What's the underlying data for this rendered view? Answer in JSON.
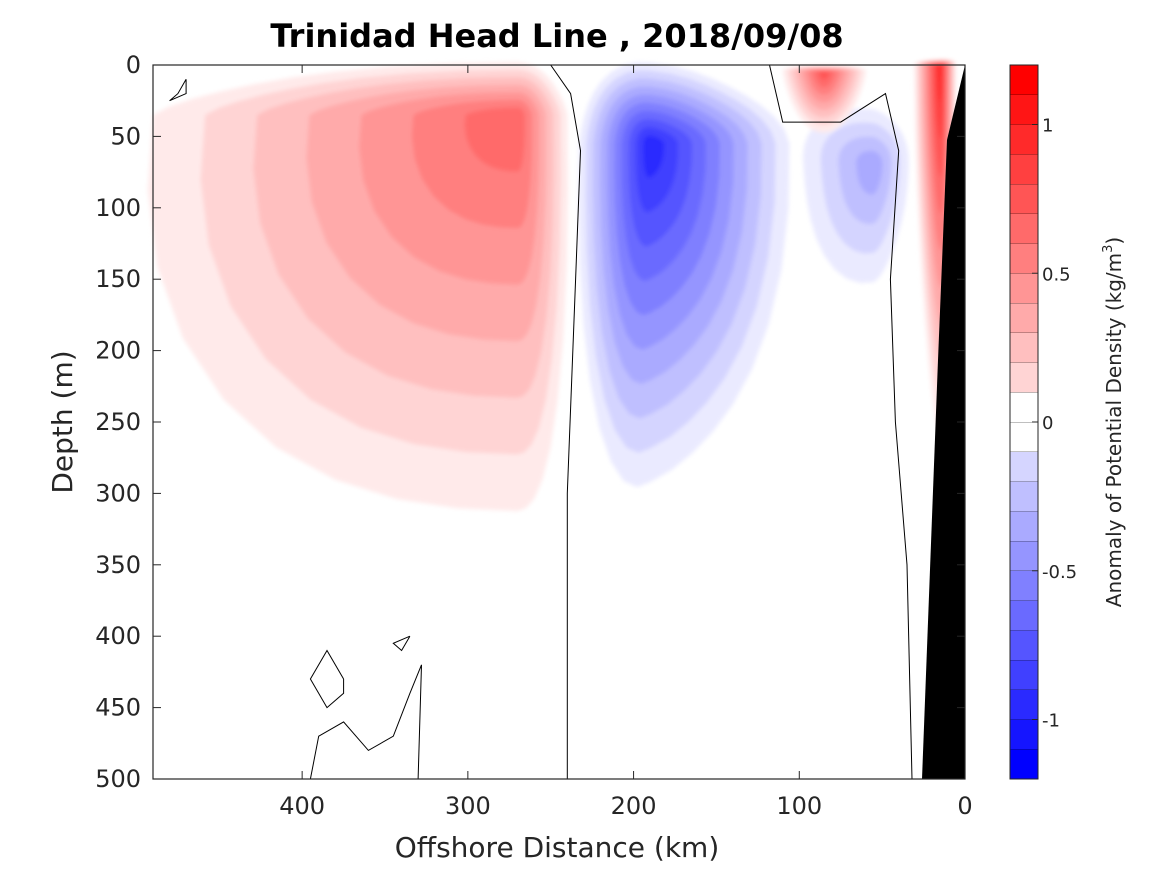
{
  "chart_data": {
    "type": "heatmap",
    "title": "Trinidad Head Line , 2018/09/08",
    "xlabel": "Offshore Distance (km)",
    "ylabel": "Depth (m)",
    "xlim": [
      490,
      0
    ],
    "ylim": [
      0,
      500
    ],
    "x_direction": "reversed",
    "y_direction": "reversed (depth increases downward)",
    "x_ticks": [
      "400",
      "300",
      "200",
      "100",
      "0"
    ],
    "y_ticks": [
      "0",
      "50",
      "100",
      "150",
      "200",
      "250",
      "300",
      "350",
      "400",
      "450",
      "500"
    ],
    "colorbar": {
      "label_main": "Anomaly of Potential Density (kg/m",
      "label_sup": "3",
      "label_end": ")",
      "range": [
        -1.2,
        1.2
      ],
      "ticks": [
        "1",
        "0.5",
        "0",
        "-0.5",
        "-1"
      ],
      "levels_step": 0.1,
      "colormap": "blue-white-red"
    },
    "features": [
      {
        "sign": "positive",
        "label": "offshore dense anomaly",
        "x_range_km": [
          490,
          240
        ],
        "depth_range_m": [
          0,
          330
        ],
        "peak_value": 0.65,
        "peak_x_km": 270,
        "peak_depth_m": 35
      },
      {
        "sign": "negative",
        "label": "central light anomaly",
        "x_range_km": [
          235,
          110
        ],
        "depth_range_m": [
          0,
          300
        ],
        "peak_value": -1.0,
        "peak_x_km": 190,
        "peak_depth_m": 55
      },
      {
        "sign": "negative",
        "label": "nearshore light anomaly",
        "x_range_km": [
          100,
          35
        ],
        "depth_range_m": [
          30,
          150
        ],
        "peak_value": -0.4,
        "peak_x_km": 55,
        "peak_depth_m": 70
      },
      {
        "sign": "positive",
        "label": "surface dense anomaly",
        "x_range_km": [
          110,
          60
        ],
        "depth_range_m": [
          0,
          45
        ],
        "peak_value": 0.8,
        "peak_x_km": 85,
        "peak_depth_m": 5
      },
      {
        "sign": "positive",
        "label": "coastal dense anomaly",
        "x_range_km": [
          30,
          5
        ],
        "depth_range_m": [
          0,
          250
        ],
        "peak_value": 1.0,
        "peak_x_km": 15,
        "peak_depth_m": 0
      }
    ],
    "zero_contours": true,
    "bathymetry_mask": "black wedge at coast (x < 30 km)"
  }
}
